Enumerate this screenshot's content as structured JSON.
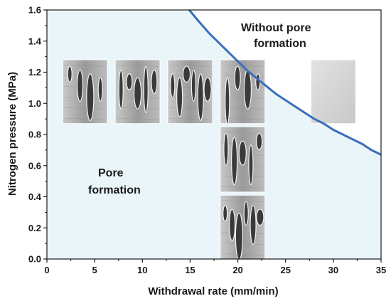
{
  "chart_data": {
    "type": "area",
    "xlabel": "Withdrawal rate (mm/min)",
    "ylabel": "Nitrogen pressure (MPa)",
    "xlim": [
      0,
      35
    ],
    "ylim": [
      0,
      1.6
    ],
    "x_ticks": [
      "0",
      "5",
      "10",
      "15",
      "20",
      "25",
      "30",
      "35"
    ],
    "y_ticks": [
      "0.0",
      "0.2",
      "0.4",
      "0.6",
      "0.8",
      "1.0",
      "1.2",
      "1.4",
      "1.6"
    ],
    "grid": false,
    "boundary_curve": {
      "x": [
        14.9,
        16,
        17,
        18,
        19,
        20,
        21,
        22,
        23,
        24,
        25,
        26,
        27,
        28,
        29,
        30,
        31,
        32,
        33,
        34,
        35
      ],
      "y": [
        1.6,
        1.52,
        1.45,
        1.39,
        1.33,
        1.27,
        1.21,
        1.16,
        1.11,
        1.06,
        1.02,
        0.98,
        0.94,
        0.9,
        0.87,
        0.83,
        0.8,
        0.77,
        0.74,
        0.7,
        0.67
      ]
    },
    "colors": {
      "boundary": "#3b6fba",
      "pore_region_fill": "#eaf5f9",
      "axis": "#1a1a1a"
    },
    "annotations": [
      {
        "text_line1": "Pore",
        "text_line2": "formation",
        "region": "pore-formation"
      },
      {
        "text_line1": "Without pore",
        "text_line2": "formation",
        "region": "without-pore-formation"
      }
    ],
    "micrographs": [
      {
        "name": "micrograph-rate-1",
        "x_center": 4.0,
        "y_top": 1.28,
        "y_bottom": 0.87
      },
      {
        "name": "micrograph-rate-2",
        "x_center": 9.5,
        "y_top": 1.28,
        "y_bottom": 0.87
      },
      {
        "name": "micrograph-rate-3",
        "x_center": 15.0,
        "y_top": 1.28,
        "y_bottom": 0.87
      },
      {
        "name": "micrograph-rate-4-top",
        "x_center": 20.5,
        "y_top": 1.28,
        "y_bottom": 0.87
      },
      {
        "name": "micrograph-rate-4-middle",
        "x_center": 20.5,
        "y_top": 0.85,
        "y_bottom": 0.43
      },
      {
        "name": "micrograph-rate-4-bottom",
        "x_center": 20.5,
        "y_top": 0.41,
        "y_bottom": 0.0
      },
      {
        "name": "micrograph-no-pores",
        "x_center": 30.0,
        "y_top": 1.28,
        "y_bottom": 0.87
      }
    ]
  }
}
